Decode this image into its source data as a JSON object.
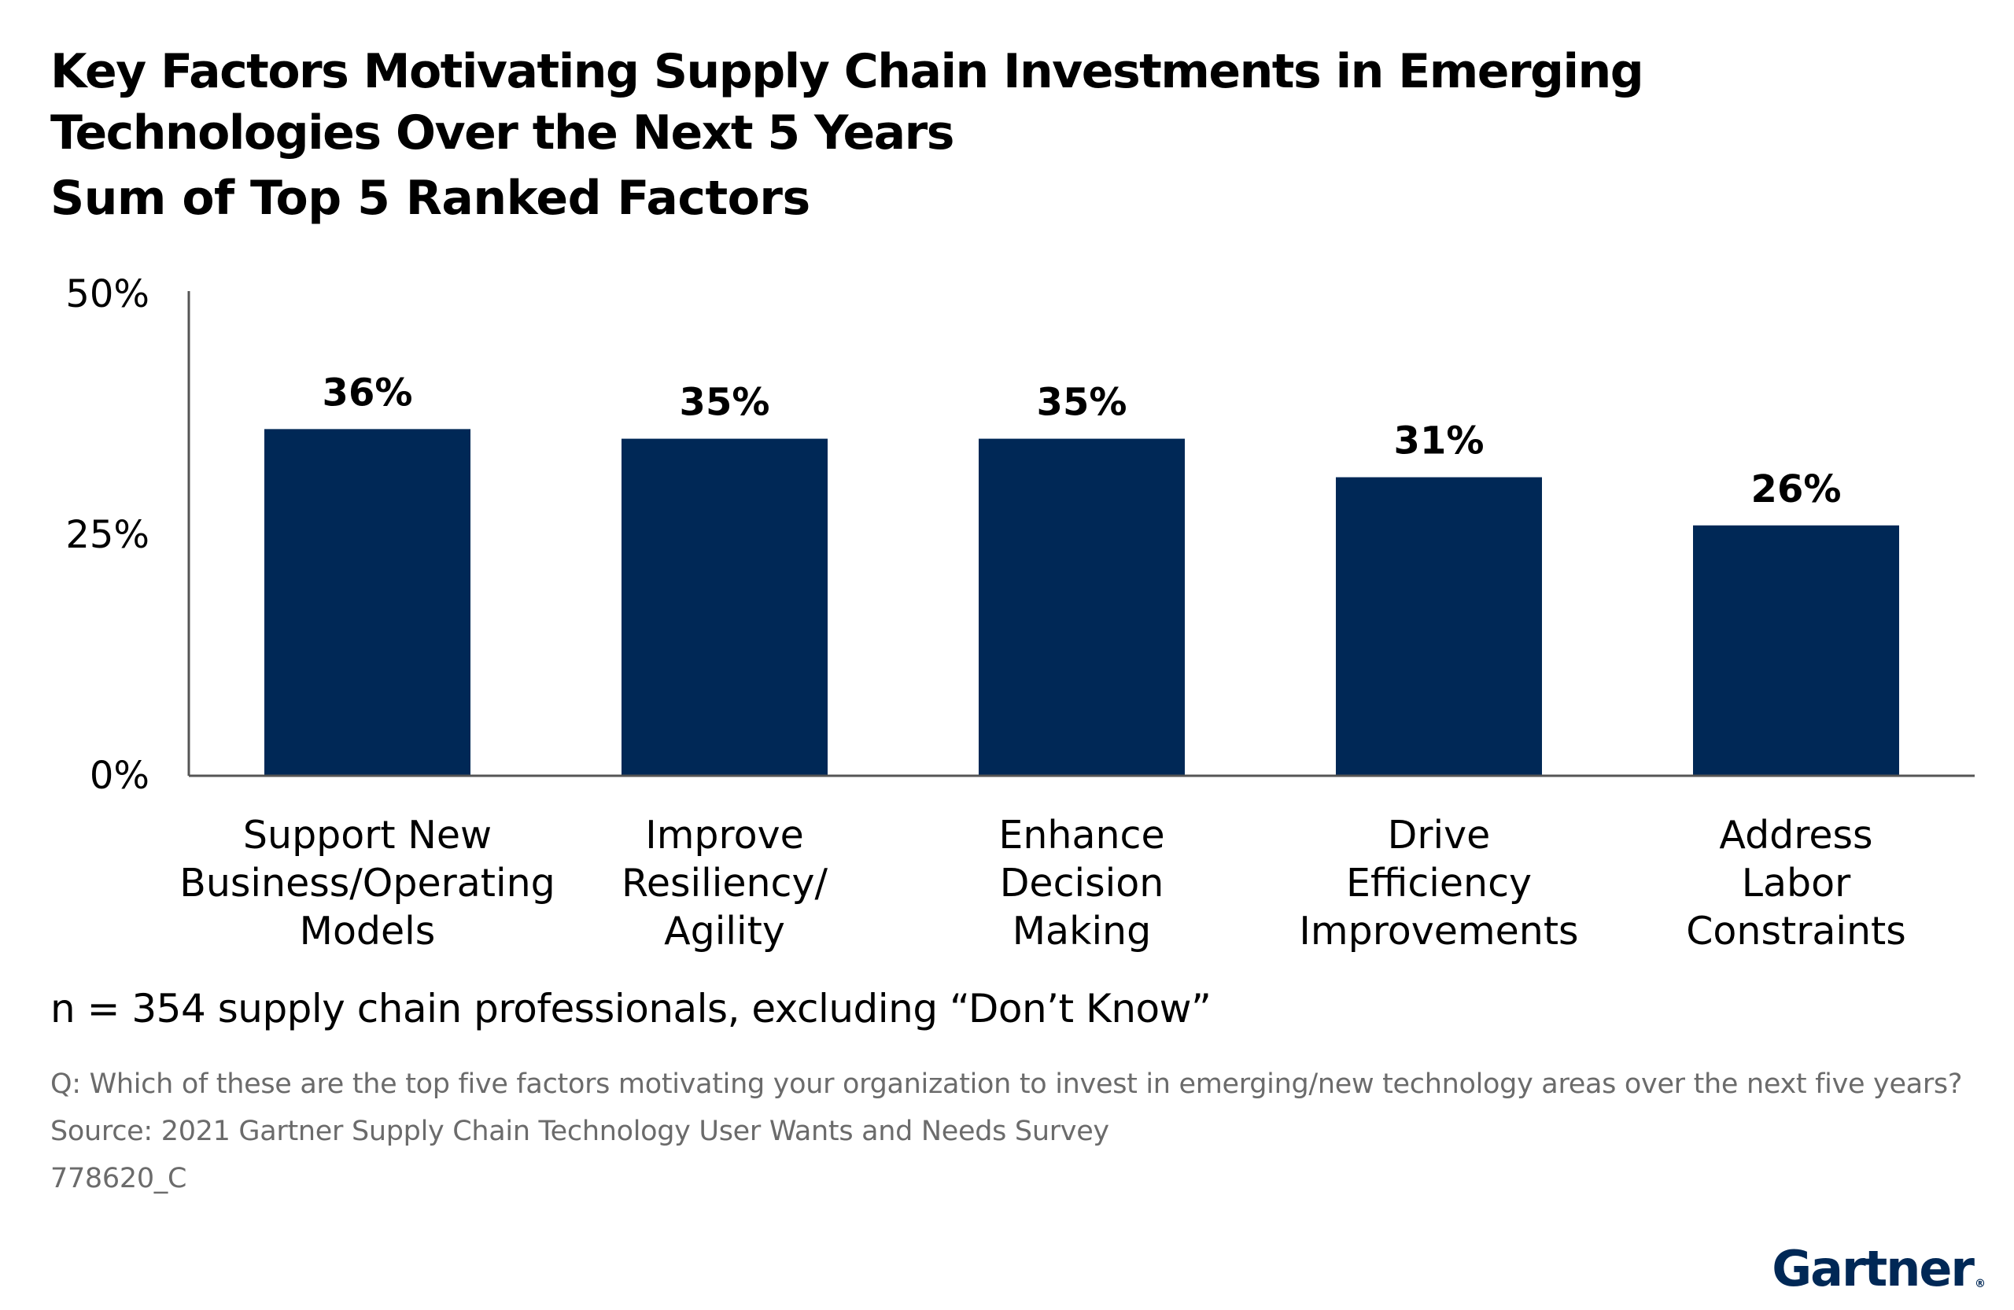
{
  "title": "Key Factors Motivating Supply Chain Investments in Emerging Technologies Over the Next 5 Years",
  "subtitle": "Sum of Top 5 Ranked Factors",
  "note": "n = 354 supply chain professionals, excluding “Don’t Know”",
  "question": "Q: Which of these are the top five factors motivating your organization to invest in emerging/new technology areas over the next five years?",
  "source": "Source: 2021 Gartner Supply Chain Technology User Wants and Needs Survey",
  "code": "778620_C",
  "logo": "Gartner",
  "colors": {
    "bar": "#002856",
    "axis": "#555555"
  },
  "chart_data": {
    "type": "bar",
    "categories": [
      [
        "Support New",
        "Business/Operating",
        "Models"
      ],
      [
        "Improve",
        "Resiliency/",
        "Agility"
      ],
      [
        "Enhance",
        "Decision",
        "Making"
      ],
      [
        "Drive",
        "Efficiency",
        "Improvements"
      ],
      [
        "Address",
        "Labor",
        "Constraints"
      ]
    ],
    "values": [
      36,
      35,
      35,
      31,
      26
    ],
    "value_labels": [
      "36%",
      "35%",
      "35%",
      "31%",
      "26%"
    ],
    "ylim": [
      0,
      50
    ],
    "yticks": [
      0,
      25,
      50
    ],
    "ytick_labels": [
      "0%",
      "25%",
      "50%"
    ],
    "grid": false,
    "legend": "none"
  }
}
